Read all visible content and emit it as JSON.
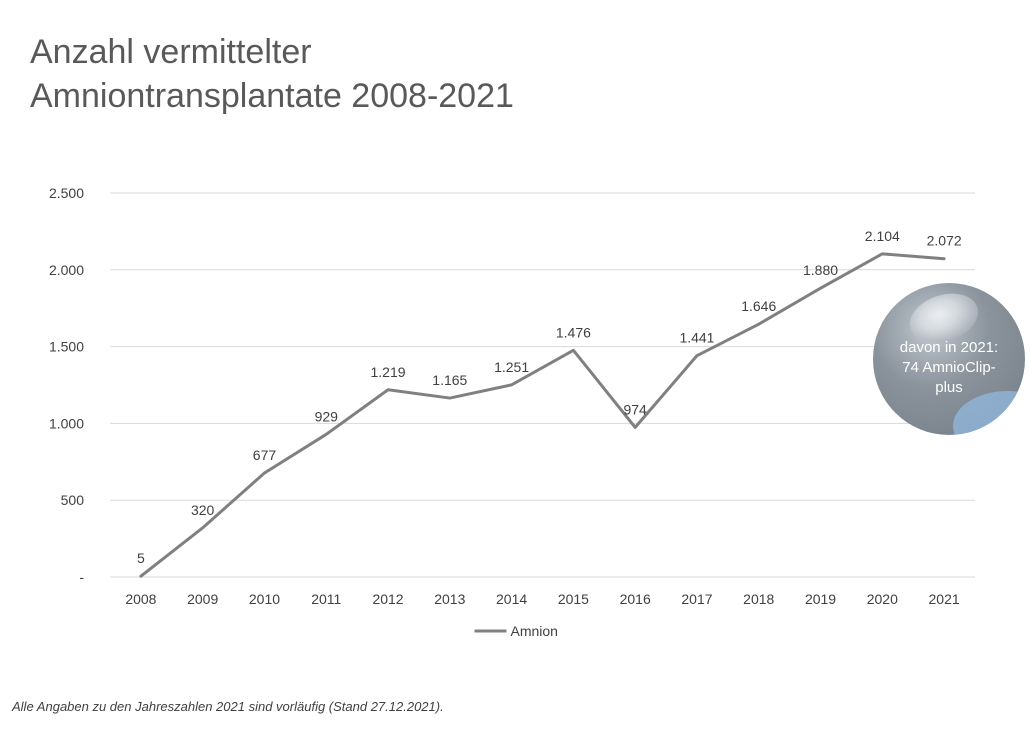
{
  "title": {
    "line1": "Anzahl vermittelter",
    "line2": "Amniontransplantate 2008-2021"
  },
  "footnote": "Alle Angaben zu den Jahreszahlen 2021 sind vorläufig (Stand 27.12.2021).",
  "badge": {
    "line1": "davon in 2021:",
    "line2": "74 AmnioClip-",
    "line3": "plus"
  },
  "colors": {
    "series_line": "#808080",
    "gridline": "#d9d9d9",
    "text": "#404040"
  },
  "chart_data": {
    "type": "line",
    "categories": [
      "2008",
      "2009",
      "2010",
      "2011",
      "2012",
      "2013",
      "2014",
      "2015",
      "2016",
      "2017",
      "2018",
      "2019",
      "2020",
      "2021"
    ],
    "series": [
      {
        "name": "Amnion",
        "values": [
          5,
          320,
          677,
          929,
          1219,
          1165,
          1251,
          1476,
          974,
          1441,
          1646,
          1880,
          2104,
          2072
        ],
        "labels": [
          "5",
          "320",
          "677",
          "929",
          "1.219",
          "1.165",
          "1.251",
          "1.476",
          "974",
          "1.441",
          "1.646",
          "1.880",
          "2.104",
          "2.072"
        ]
      }
    ],
    "yticks": [
      0,
      500,
      1000,
      1500,
      2000,
      2500
    ],
    "ytick_labels": [
      "-",
      "500",
      "1.000",
      "1.500",
      "2.000",
      "2.500"
    ],
    "ylim": [
      0,
      2500
    ],
    "grid": true,
    "legend": "bottom-center"
  }
}
